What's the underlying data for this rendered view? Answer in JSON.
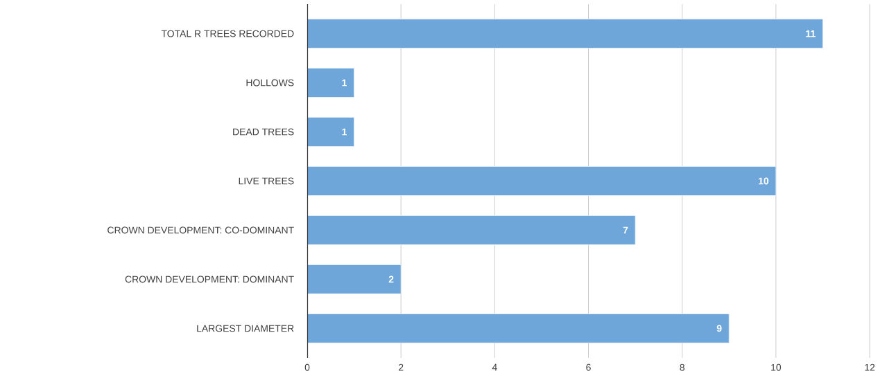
{
  "chart_data": {
    "type": "bar",
    "orientation": "horizontal",
    "categories": [
      "TOTAL R TREES RECORDED",
      "HOLLOWS",
      "DEAD TREES",
      "LIVE TREES",
      "CROWN DEVELOPMENT: CO-DOMINANT",
      "CROWN DEVELOPMENT: DOMINANT",
      "LARGEST DIAMETER"
    ],
    "values": [
      11,
      1,
      1,
      10,
      7,
      2,
      9
    ],
    "color": "#6fa6da",
    "xlim": [
      0,
      12
    ],
    "xticks": [
      0,
      2,
      4,
      6,
      8,
      10,
      12
    ],
    "grid": "x",
    "data_labels": true
  }
}
